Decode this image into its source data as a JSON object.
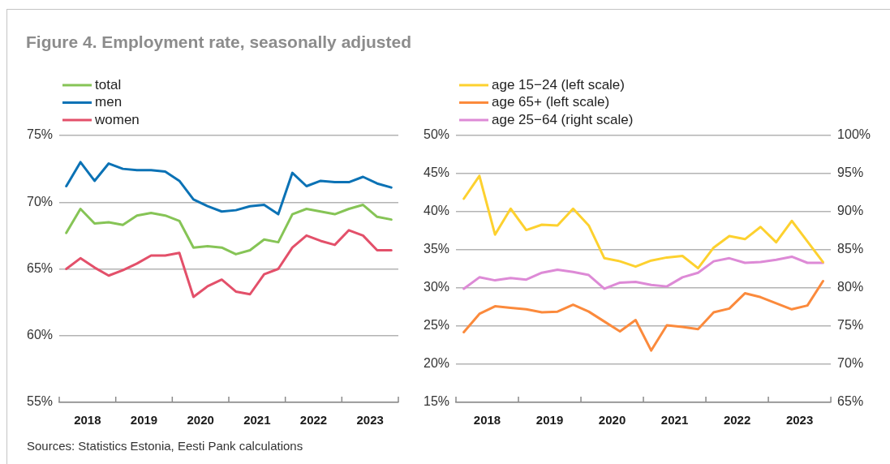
{
  "chart_data": [
    {
      "type": "line",
      "title": "Figure 4. Employment rate, seasonally adjusted",
      "annotations": [
        "Sources: Statistics Estonia, Eesti Pank calculations"
      ],
      "x": [
        2018.125,
        2018.375,
        2018.625,
        2018.875,
        2019.125,
        2019.375,
        2019.625,
        2019.875,
        2020.125,
        2020.375,
        2020.625,
        2020.875,
        2021.125,
        2021.375,
        2021.625,
        2021.875,
        2022.125,
        2022.375,
        2022.625,
        2022.875,
        2023.125,
        2023.375,
        2023.625,
        2023.875
      ],
      "xlim": [
        2018,
        2024
      ],
      "xticks": [
        {
          "value": 2018,
          "label": null
        },
        {
          "value": 2018.5,
          "label": "2018"
        },
        {
          "value": 2019,
          "label": null
        },
        {
          "value": 2019.5,
          "label": "2019"
        },
        {
          "value": 2020,
          "label": null
        },
        {
          "value": 2020.5,
          "label": "2020"
        },
        {
          "value": 2021,
          "label": null
        },
        {
          "value": 2021.5,
          "label": "2021"
        },
        {
          "value": 2022,
          "label": null
        },
        {
          "value": 2022.5,
          "label": "2022"
        },
        {
          "value": 2023,
          "label": null
        },
        {
          "value": 2023.5,
          "label": "2023"
        },
        {
          "value": 2024,
          "label": null
        }
      ],
      "ylim": [
        55,
        75
      ],
      "yticks": [
        {
          "value": 55,
          "label": "55%"
        },
        {
          "value": 60,
          "label": "60%"
        },
        {
          "value": 65,
          "label": "65%"
        },
        {
          "value": 70,
          "label": "70%"
        },
        {
          "value": 75,
          "label": "75%"
        }
      ],
      "grid": "y",
      "legend": "top left",
      "marker": "none",
      "series": [
        {
          "name": "total",
          "color": "#86c456",
          "values": [
            67.7,
            69.5,
            68.4,
            68.5,
            68.3,
            69.0,
            69.2,
            69.0,
            68.6,
            66.6,
            66.7,
            66.6,
            66.1,
            66.4,
            67.2,
            67.0,
            69.1,
            69.5,
            69.3,
            69.1,
            69.5,
            69.8,
            68.9,
            68.7
          ]
        },
        {
          "name": "men",
          "color": "#0b72b5",
          "values": [
            71.2,
            73.0,
            71.6,
            72.9,
            72.5,
            72.4,
            72.4,
            72.3,
            71.6,
            70.2,
            69.7,
            69.3,
            69.4,
            69.7,
            69.8,
            69.1,
            72.2,
            71.2,
            71.6,
            71.5,
            71.5,
            71.9,
            71.4,
            71.1
          ]
        },
        {
          "name": "women",
          "color": "#e3506a",
          "values": [
            65.0,
            65.8,
            65.1,
            64.5,
            64.9,
            65.4,
            66.0,
            66.0,
            66.2,
            62.9,
            63.7,
            64.2,
            63.3,
            63.1,
            64.6,
            65.0,
            66.6,
            67.5,
            67.1,
            66.8,
            67.9,
            67.5,
            66.4,
            66.4
          ]
        }
      ]
    },
    {
      "type": "line",
      "x": [
        2018.125,
        2018.375,
        2018.625,
        2018.875,
        2019.125,
        2019.375,
        2019.625,
        2019.875,
        2020.125,
        2020.375,
        2020.625,
        2020.875,
        2021.125,
        2021.375,
        2021.625,
        2021.875,
        2022.125,
        2022.375,
        2022.625,
        2022.875,
        2023.125,
        2023.375,
        2023.625,
        2023.875
      ],
      "xlim": [
        2018,
        2024
      ],
      "xticks": [
        {
          "value": 2018,
          "label": null
        },
        {
          "value": 2018.5,
          "label": "2018"
        },
        {
          "value": 2019,
          "label": null
        },
        {
          "value": 2019.5,
          "label": "2019"
        },
        {
          "value": 2020,
          "label": null
        },
        {
          "value": 2020.5,
          "label": "2020"
        },
        {
          "value": 2021,
          "label": null
        },
        {
          "value": 2021.5,
          "label": "2021"
        },
        {
          "value": 2022,
          "label": null
        },
        {
          "value": 2022.5,
          "label": "2022"
        },
        {
          "value": 2023,
          "label": null
        },
        {
          "value": 2023.5,
          "label": "2023"
        },
        {
          "value": 2024,
          "label": null
        }
      ],
      "ylim": [
        15,
        50
      ],
      "yticks": [
        {
          "value": 15,
          "label": "15%"
        },
        {
          "value": 20,
          "label": "20%"
        },
        {
          "value": 25,
          "label": "25%"
        },
        {
          "value": 30,
          "label": "30%"
        },
        {
          "value": 35,
          "label": "35%"
        },
        {
          "value": 40,
          "label": "40%"
        },
        {
          "value": 45,
          "label": "45%"
        },
        {
          "value": 50,
          "label": "50%"
        }
      ],
      "y2lim": [
        65,
        100
      ],
      "y2ticks": [
        {
          "value": 65,
          "label": "65%"
        },
        {
          "value": 70,
          "label": "70%"
        },
        {
          "value": 75,
          "label": "75%"
        },
        {
          "value": 80,
          "label": "80%"
        },
        {
          "value": 85,
          "label": "85%"
        },
        {
          "value": 90,
          "label": "90%"
        },
        {
          "value": 95,
          "label": "95%"
        },
        {
          "value": 100,
          "label": "100%"
        }
      ],
      "grid": "y",
      "legend": "top left",
      "marker": "none",
      "series": [
        {
          "name": "age 15−24 (left scale)",
          "color": "#fdd12f",
          "values": [
            41.7,
            44.7,
            37.0,
            40.4,
            37.6,
            38.3,
            38.2,
            40.4,
            38.2,
            33.9,
            33.5,
            32.8,
            33.6,
            34.0,
            34.2,
            32.6,
            35.3,
            36.8,
            36.4,
            38.0,
            36.0,
            38.8,
            36.1,
            33.4
          ]
        },
        {
          "name": "age 65+ (left scale)",
          "color": "#fb8a3c",
          "values": [
            24.2,
            26.6,
            27.6,
            27.4,
            27.2,
            26.8,
            26.9,
            27.8,
            26.9,
            25.6,
            24.3,
            25.8,
            21.8,
            25.1,
            24.9,
            24.6,
            26.8,
            27.3,
            29.3,
            28.8,
            28.0,
            27.2,
            27.7,
            30.9
          ]
        },
        {
          "name": "age 25−64 (right scale)",
          "color": "#dd8ad6",
          "axis": "y2",
          "values": [
            79.9,
            81.4,
            81.0,
            81.3,
            81.1,
            82.0,
            82.4,
            82.1,
            81.7,
            79.9,
            80.7,
            80.8,
            80.4,
            80.2,
            81.4,
            82.0,
            83.5,
            83.9,
            83.3,
            83.4,
            83.7,
            84.1,
            83.3,
            83.3
          ]
        }
      ]
    }
  ]
}
